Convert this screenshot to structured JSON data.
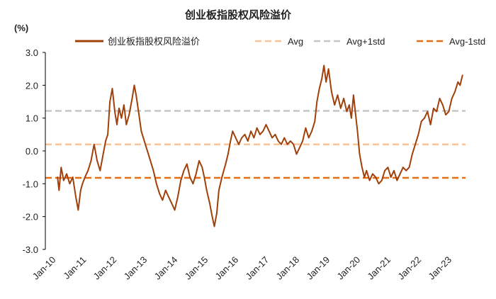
{
  "chart_data": {
    "type": "line",
    "title": "创业板指股权风险溢价",
    "ylabel": "(%)",
    "xlabel": "",
    "ylim": [
      -3.0,
      3.0
    ],
    "yticks": [
      "3.0",
      "2.0",
      "1.0",
      "0.0",
      "-1.0",
      "-2.0",
      "-3.0"
    ],
    "xticks": [
      "Jan-10",
      "Jan-11",
      "Jan-12",
      "Jan-13",
      "Jan-14",
      "Jan-15",
      "Jan-16",
      "Jan-17",
      "Jan-18",
      "Jan-19",
      "Jan-20",
      "Jan-21",
      "Jan-22",
      "Jan-23"
    ],
    "grid": false,
    "legend_position": "top",
    "series": [
      {
        "name": "创业板指股权风险溢价",
        "color": "#a0400b",
        "style": "solid",
        "x": [
          2010.4,
          2010.45,
          2010.52,
          2010.6,
          2010.7,
          2010.8,
          2010.9,
          2011.0,
          2011.08,
          2011.16,
          2011.22,
          2011.3,
          2011.4,
          2011.5,
          2011.6,
          2011.7,
          2011.8,
          2011.9,
          2011.98,
          2012.05,
          2012.12,
          2012.2,
          2012.28,
          2012.35,
          2012.42,
          2012.5,
          2012.58,
          2012.66,
          2012.75,
          2012.85,
          2012.92,
          2012.98,
          2013.06,
          2013.15,
          2013.25,
          2013.35,
          2013.45,
          2013.55,
          2013.65,
          2013.75,
          2013.85,
          2013.95,
          2014.05,
          2014.15,
          2014.25,
          2014.35,
          2014.45,
          2014.55,
          2014.65,
          2014.75,
          2014.85,
          2014.95,
          2015.05,
          2015.15,
          2015.22,
          2015.3,
          2015.4,
          2015.48,
          2015.55,
          2015.63,
          2015.7,
          2015.8,
          2015.92,
          2016.0,
          2016.08,
          2016.15,
          2016.25,
          2016.35,
          2016.45,
          2016.55,
          2016.65,
          2016.75,
          2016.85,
          2016.95,
          2017.05,
          2017.15,
          2017.25,
          2017.35,
          2017.45,
          2017.55,
          2017.65,
          2017.75,
          2017.85,
          2017.95,
          2018.05,
          2018.15,
          2018.25,
          2018.35,
          2018.45,
          2018.55,
          2018.65,
          2018.75,
          2018.85,
          2018.92,
          2019.0,
          2019.08,
          2019.15,
          2019.22,
          2019.3,
          2019.4,
          2019.5,
          2019.6,
          2019.7,
          2019.8,
          2019.9,
          2019.98,
          2020.05,
          2020.12,
          2020.18,
          2020.25,
          2020.32,
          2020.4,
          2020.48,
          2020.55,
          2020.65,
          2020.75,
          2020.85,
          2020.95,
          2021.05,
          2021.15,
          2021.25,
          2021.35,
          2021.45,
          2021.55,
          2021.65,
          2021.75,
          2021.85,
          2021.95,
          2022.05,
          2022.15,
          2022.25,
          2022.35,
          2022.45,
          2022.55,
          2022.65,
          2022.75,
          2022.85,
          2022.95,
          2023.05,
          2023.15,
          2023.25,
          2023.35,
          2023.45,
          2023.55,
          2023.62,
          2023.7
        ],
        "values": [
          -0.8,
          -1.2,
          -0.5,
          -0.9,
          -0.7,
          -1.0,
          -0.8,
          -1.4,
          -1.8,
          -1.2,
          -1.0,
          -0.8,
          -0.6,
          -0.3,
          0.2,
          -0.3,
          -0.6,
          -0.1,
          0.3,
          0.5,
          1.5,
          1.9,
          1.2,
          0.8,
          1.3,
          1.0,
          1.4,
          0.8,
          1.1,
          1.6,
          2.0,
          1.7,
          1.2,
          0.6,
          0.3,
          0.0,
          -0.3,
          -0.6,
          -1.0,
          -1.3,
          -1.5,
          -1.2,
          -1.4,
          -1.6,
          -1.8,
          -1.4,
          -0.9,
          -0.6,
          -0.4,
          -0.8,
          -1.0,
          -0.7,
          -0.3,
          -0.5,
          -0.8,
          -1.2,
          -1.6,
          -2.0,
          -2.3,
          -1.9,
          -1.2,
          -0.8,
          -0.4,
          -0.1,
          0.3,
          0.6,
          0.4,
          0.2,
          0.4,
          0.5,
          0.3,
          0.6,
          0.4,
          0.7,
          0.5,
          0.6,
          0.8,
          0.6,
          0.4,
          0.5,
          0.3,
          0.2,
          0.4,
          0.2,
          0.3,
          0.2,
          -0.1,
          0.1,
          0.3,
          0.7,
          0.4,
          0.6,
          0.9,
          1.5,
          1.9,
          2.2,
          2.6,
          2.1,
          2.5,
          1.8,
          1.4,
          1.7,
          1.3,
          1.6,
          1.2,
          1.4,
          1.0,
          1.7,
          1.2,
          0.6,
          -0.1,
          -0.5,
          -0.8,
          -0.6,
          -0.9,
          -0.7,
          -0.8,
          -1.0,
          -0.9,
          -0.6,
          -0.5,
          -0.8,
          -0.6,
          -0.9,
          -0.7,
          -0.5,
          -0.6,
          -0.5,
          -0.1,
          0.2,
          0.5,
          0.9,
          1.0,
          1.2,
          0.8,
          1.3,
          1.2,
          1.6,
          1.4,
          1.1,
          1.2,
          1.6,
          1.8,
          2.1,
          2.0,
          2.3
        ]
      },
      {
        "name": "Avg",
        "color": "#f7c49c",
        "style": "dashed",
        "constant": 0.2
      },
      {
        "name": "Avg+1std",
        "color": "#c6c6c6",
        "style": "dashed",
        "constant": 1.22
      },
      {
        "name": "Avg-1std",
        "color": "#e36e19",
        "style": "dashed",
        "constant": -0.82
      }
    ]
  }
}
